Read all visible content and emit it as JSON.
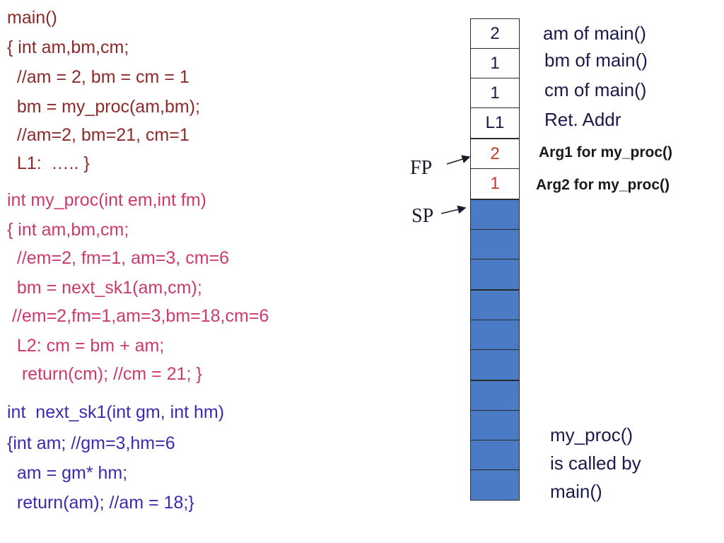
{
  "code": {
    "main": [
      "main()",
      "{ int am,bm,cm;",
      "  //am = 2, bm = cm = 1",
      "  bm = my_proc(am,bm);",
      "  //am=2, bm=21, cm=1",
      "  L1:  ….. }"
    ],
    "my_proc": [
      "int my_proc(int em,int fm)",
      "{ int am,bm,cm;",
      "  //em=2, fm=1, am=3, cm=6",
      "  bm = next_sk1(am,cm);",
      " //em=2,fm=1,am=3,bm=18,cm=6",
      "  L2: cm = bm + am;",
      "   return(cm); //cm = 21; }"
    ],
    "next_sk1": [
      "int  next_sk1(int gm, int hm)",
      "{int am; //gm=3,hm=6",
      "  am = gm* hm;",
      "  return(am); //am = 18;}"
    ]
  },
  "stack": {
    "cells": [
      "2",
      "1",
      "1",
      "L1",
      "2",
      "1",
      "",
      "",
      "",
      "",
      "",
      "",
      "",
      "",
      "",
      ""
    ],
    "labels": [
      "am of main()",
      "bm of main()",
      "cm of main()",
      "Ret. Addr",
      "Arg1 for my_proc()",
      "Arg2 for my_proc()"
    ],
    "fp_label": "FP",
    "sp_label": "SP"
  },
  "note": [
    "my_proc()",
    "is called by",
    "main()"
  ],
  "colors": {
    "main_code": "#8c2a2a",
    "my_proc_code": "#cc3a6a",
    "next_sk1_code": "#3a2ab0",
    "empty_cell": "#4a7bc4",
    "arg_value": "#c0392b"
  }
}
